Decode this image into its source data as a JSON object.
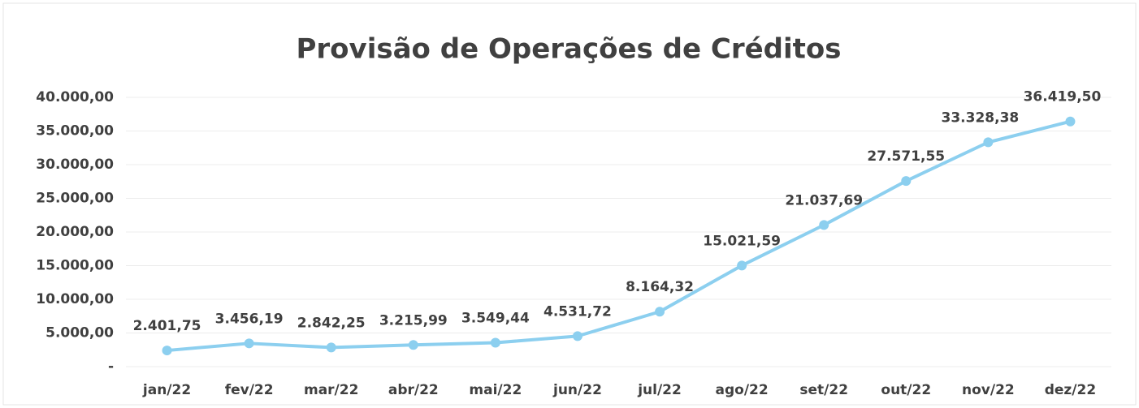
{
  "chart_data": {
    "type": "line",
    "title": "Provisão de Operações de Créditos",
    "categories": [
      "jan/22",
      "fev/22",
      "mar/22",
      "abr/22",
      "mai/22",
      "jun/22",
      "jul/22",
      "ago/22",
      "set/22",
      "out/22",
      "nov/22",
      "dez/22"
    ],
    "series": [
      {
        "name": "Provisão",
        "color": "#8ccfef",
        "values": [
          2401.75,
          3456.19,
          2842.25,
          3215.99,
          3549.44,
          4531.72,
          8164.32,
          15021.59,
          21037.69,
          27571.55,
          33328.38,
          36419.5
        ],
        "value_labels": [
          "2.401,75",
          "3.456,19",
          "2.842,25",
          "3.215,99",
          "3.549,44",
          "4.531,72",
          "8.164,32",
          "15.021,59",
          "21.037,69",
          "27.571,55",
          "33.328,38",
          "36.419,50"
        ]
      }
    ],
    "ylim": [
      0,
      40000
    ],
    "yticks": [
      {
        "value": 0,
        "label": "-"
      },
      {
        "value": 5000,
        "label": "5.000,00"
      },
      {
        "value": 10000,
        "label": "10.000,00"
      },
      {
        "value": 15000,
        "label": "15.000,00"
      },
      {
        "value": 20000,
        "label": "20.000,00"
      },
      {
        "value": 25000,
        "label": "25.000,00"
      },
      {
        "value": 30000,
        "label": "30.000,00"
      },
      {
        "value": 35000,
        "label": "35.000,00"
      },
      {
        "value": 40000,
        "label": "40.000,00"
      }
    ],
    "grid": true
  }
}
